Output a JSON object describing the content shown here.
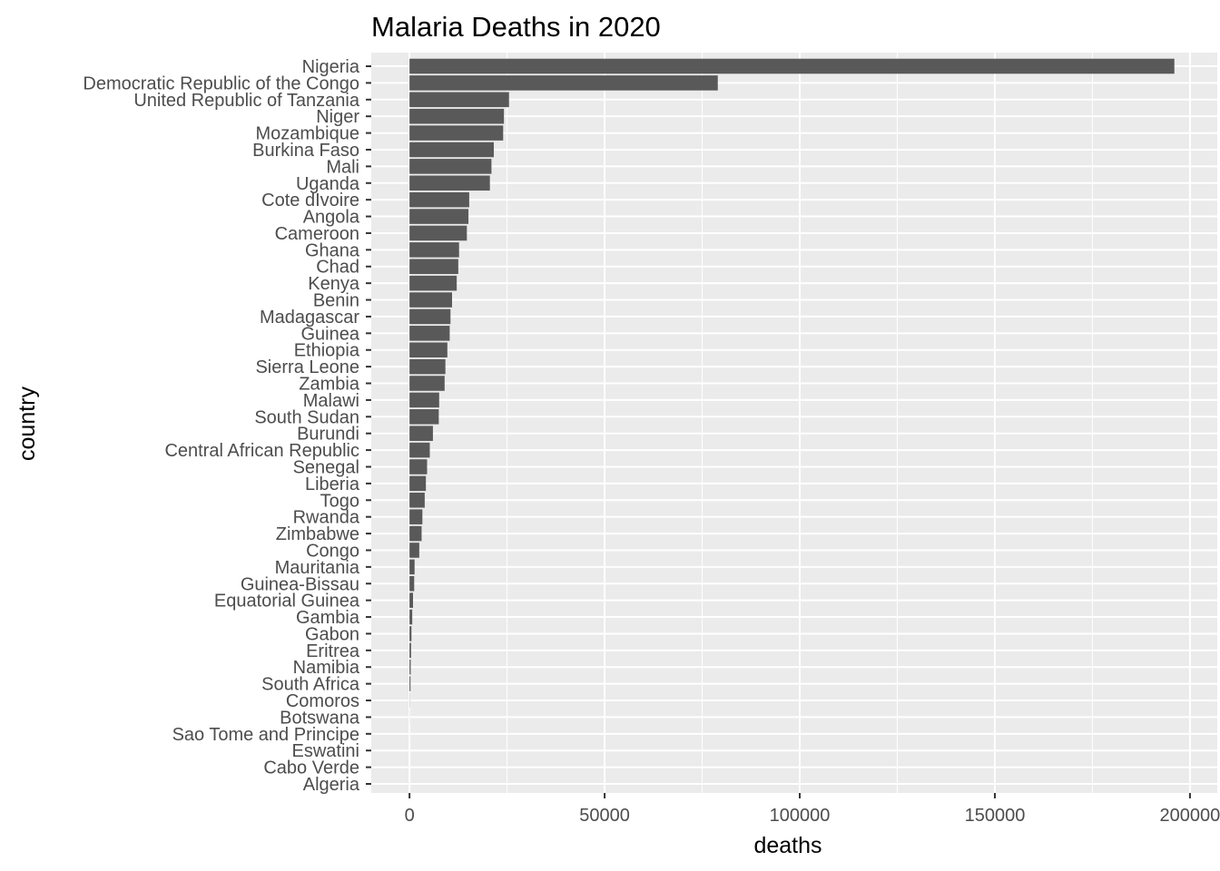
{
  "chart_data": {
    "type": "bar",
    "orientation": "horizontal",
    "title": "Malaria Deaths in 2020",
    "xlabel": "deaths",
    "ylabel": "country",
    "xlim": [
      -9800,
      207000
    ],
    "xticks": [
      0,
      50000,
      100000,
      150000,
      200000
    ],
    "xtick_labels": [
      "0",
      "50000",
      "100000",
      "150000",
      "200000"
    ],
    "grid": true,
    "bar_color": "#595959",
    "panel_color": "#ebebeb",
    "categories": [
      "Nigeria",
      "Democratic Republic of the Congo",
      "United Republic of Tanzania",
      "Niger",
      "Mozambique",
      "Burkina Faso",
      "Mali",
      "Uganda",
      "Cote dIvoire",
      "Angola",
      "Cameroon",
      "Ghana",
      "Chad",
      "Kenya",
      "Benin",
      "Madagascar",
      "Guinea",
      "Ethiopia",
      "Sierra Leone",
      "Zambia",
      "Malawi",
      "South Sudan",
      "Burundi",
      "Central African Republic",
      "Senegal",
      "Liberia",
      "Togo",
      "Rwanda",
      "Zimbabwe",
      "Congo",
      "Mauritania",
      "Guinea-Bissau",
      "Equatorial Guinea",
      "Gambia",
      "Gabon",
      "Eritrea",
      "Namibia",
      "South Africa",
      "Comoros",
      "Botswana",
      "Sao Tome and Principe",
      "Eswatini",
      "Cabo Verde",
      "Algeria"
    ],
    "values": [
      196000,
      79000,
      25500,
      24200,
      24000,
      21600,
      21000,
      20600,
      15300,
      15100,
      14700,
      12700,
      12500,
      12100,
      10900,
      10500,
      10300,
      9700,
      9200,
      9000,
      7600,
      7500,
      6000,
      5200,
      4500,
      4200,
      3900,
      3300,
      3100,
      2500,
      1300,
      1200,
      900,
      700,
      500,
      400,
      300,
      250,
      50,
      20,
      10,
      5,
      0,
      0
    ]
  }
}
